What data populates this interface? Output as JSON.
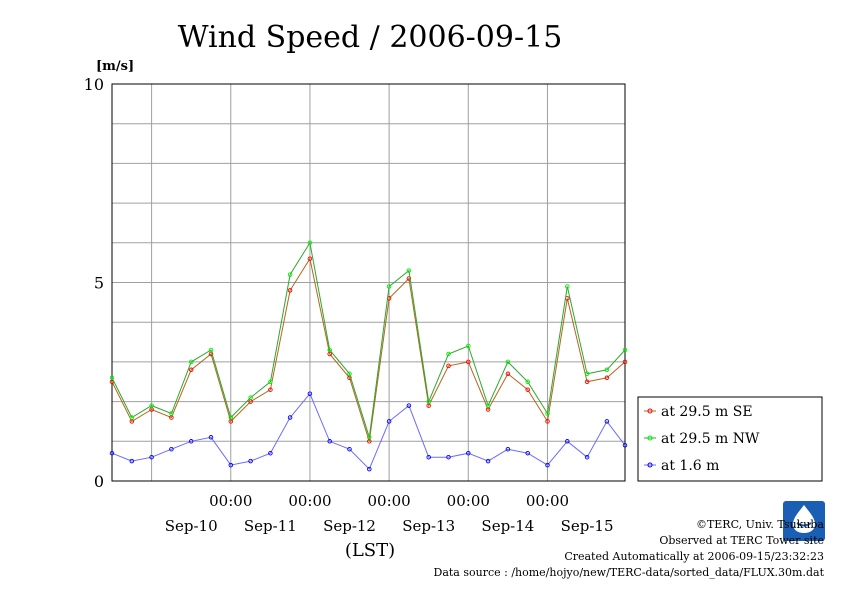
{
  "chart_data": {
    "type": "line",
    "title": "Wind Speed / 2006-09-15",
    "ylabel": "[m/s]",
    "xlabel": "(LST)",
    "ylim": [
      0,
      10
    ],
    "yticks": [
      0,
      5,
      10
    ],
    "xlim": [
      "2006-09-09 12:00",
      "2006-09-15 23:30"
    ],
    "time_tick_labels": [
      "00:00",
      "00:00",
      "00:00",
      "00:00",
      "00:00"
    ],
    "date_labels": [
      "Sep-10",
      "Sep-11",
      "Sep-12",
      "Sep-13",
      "Sep-14",
      "Sep-15"
    ],
    "grid": true,
    "legend_position": "right",
    "series": [
      {
        "name": "at 29.5 m SE",
        "color": "#ff0000",
        "line_color": "#b5651d",
        "x": [
          "2006-09-09 12:00",
          "2006-09-09 18:00",
          "2006-09-10 00:00",
          "2006-09-10 06:00",
          "2006-09-10 12:00",
          "2006-09-10 18:00",
          "2006-09-11 00:00",
          "2006-09-11 06:00",
          "2006-09-11 12:00",
          "2006-09-11 18:00",
          "2006-09-12 00:00",
          "2006-09-12 06:00",
          "2006-09-12 12:00",
          "2006-09-12 18:00",
          "2006-09-13 00:00",
          "2006-09-13 06:00",
          "2006-09-13 12:00",
          "2006-09-13 18:00",
          "2006-09-14 00:00",
          "2006-09-14 06:00",
          "2006-09-14 12:00",
          "2006-09-14 18:00",
          "2006-09-15 00:00",
          "2006-09-15 06:00",
          "2006-09-15 12:00",
          "2006-09-15 18:00",
          "2006-09-15 23:30"
        ],
        "values": [
          2.5,
          1.5,
          1.8,
          1.6,
          2.8,
          3.2,
          1.5,
          2.0,
          2.3,
          4.8,
          5.6,
          3.2,
          2.6,
          1.0,
          4.6,
          5.1,
          1.9,
          2.9,
          3.0,
          1.8,
          2.7,
          2.3,
          1.5,
          4.6,
          2.5,
          2.6,
          3.0
        ]
      },
      {
        "name": "at 29.5 m NW",
        "color": "#00ee00",
        "line_color": "#2ea82e",
        "x": [
          "2006-09-09 12:00",
          "2006-09-09 18:00",
          "2006-09-10 00:00",
          "2006-09-10 06:00",
          "2006-09-10 12:00",
          "2006-09-10 18:00",
          "2006-09-11 00:00",
          "2006-09-11 06:00",
          "2006-09-11 12:00",
          "2006-09-11 18:00",
          "2006-09-12 00:00",
          "2006-09-12 06:00",
          "2006-09-12 12:00",
          "2006-09-12 18:00",
          "2006-09-13 00:00",
          "2006-09-13 06:00",
          "2006-09-13 12:00",
          "2006-09-13 18:00",
          "2006-09-14 00:00",
          "2006-09-14 06:00",
          "2006-09-14 12:00",
          "2006-09-14 18:00",
          "2006-09-15 00:00",
          "2006-09-15 06:00",
          "2006-09-15 12:00",
          "2006-09-15 18:00",
          "2006-09-15 23:30"
        ],
        "values": [
          2.6,
          1.6,
          1.9,
          1.7,
          3.0,
          3.3,
          1.6,
          2.1,
          2.5,
          5.2,
          6.0,
          3.3,
          2.7,
          1.1,
          4.9,
          5.3,
          2.0,
          3.2,
          3.4,
          1.9,
          3.0,
          2.5,
          1.7,
          4.9,
          2.7,
          2.8,
          3.3
        ]
      },
      {
        "name": "at 1.6 m",
        "color": "#0000ff",
        "line_color": "#6b6bff",
        "x": [
          "2006-09-09 12:00",
          "2006-09-09 18:00",
          "2006-09-10 00:00",
          "2006-09-10 06:00",
          "2006-09-10 12:00",
          "2006-09-10 18:00",
          "2006-09-11 00:00",
          "2006-09-11 06:00",
          "2006-09-11 12:00",
          "2006-09-11 18:00",
          "2006-09-12 00:00",
          "2006-09-12 06:00",
          "2006-09-12 12:00",
          "2006-09-12 18:00",
          "2006-09-13 00:00",
          "2006-09-13 06:00",
          "2006-09-13 12:00",
          "2006-09-13 18:00",
          "2006-09-14 00:00",
          "2006-09-14 06:00",
          "2006-09-14 12:00",
          "2006-09-14 18:00",
          "2006-09-15 00:00",
          "2006-09-15 06:00",
          "2006-09-15 12:00",
          "2006-09-15 18:00",
          "2006-09-15 23:30"
        ],
        "values": [
          0.7,
          0.5,
          0.6,
          0.8,
          1.0,
          1.1,
          0.4,
          0.5,
          0.7,
          1.6,
          2.2,
          1.0,
          0.8,
          0.3,
          1.5,
          1.9,
          0.6,
          0.6,
          0.7,
          0.5,
          0.8,
          0.7,
          0.4,
          1.0,
          0.6,
          1.5,
          0.9
        ]
      }
    ]
  },
  "footer": {
    "copyright": "©TERC, Univ. Tsukuba",
    "observed": "Observed at TERC Tower site",
    "created": "Created Automatically at 2006-09-15/23:32:23",
    "source": "Data source : /home/hojyo/new/TERC-data/sorted_data/FLUX.30m.dat"
  },
  "logo_text": "TERC"
}
